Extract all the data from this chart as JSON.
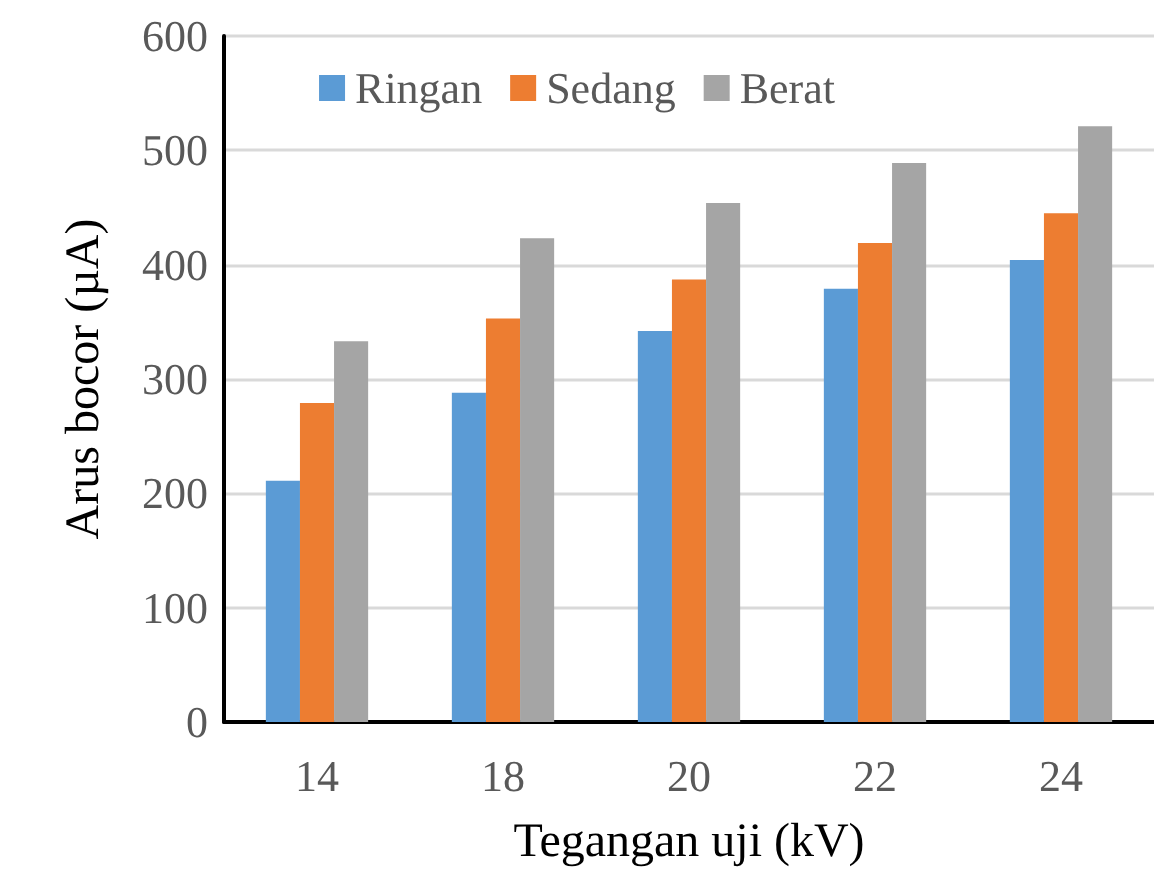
{
  "chart_data": {
    "type": "bar",
    "xlabel": "Tegangan uji (kV)",
    "ylabel": "Arus bocor (µA)",
    "categories": [
      "14",
      "18",
      "20",
      "22",
      "24"
    ],
    "series": [
      {
        "name": "Ringan",
        "color": "#5b9bd5",
        "values": [
          211,
          288,
          342,
          379,
          404
        ]
      },
      {
        "name": "Sedang",
        "color": "#ed7d31",
        "values": [
          279,
          353,
          387,
          419,
          445
        ]
      },
      {
        "name": "Berat",
        "color": "#a5a5a5",
        "values": [
          333,
          423,
          454,
          489,
          521
        ]
      }
    ],
    "ylim": [
      0,
      600
    ],
    "yticks": [
      0,
      100,
      200,
      300,
      400,
      500,
      600
    ],
    "grid": "y",
    "legend": "top"
  }
}
